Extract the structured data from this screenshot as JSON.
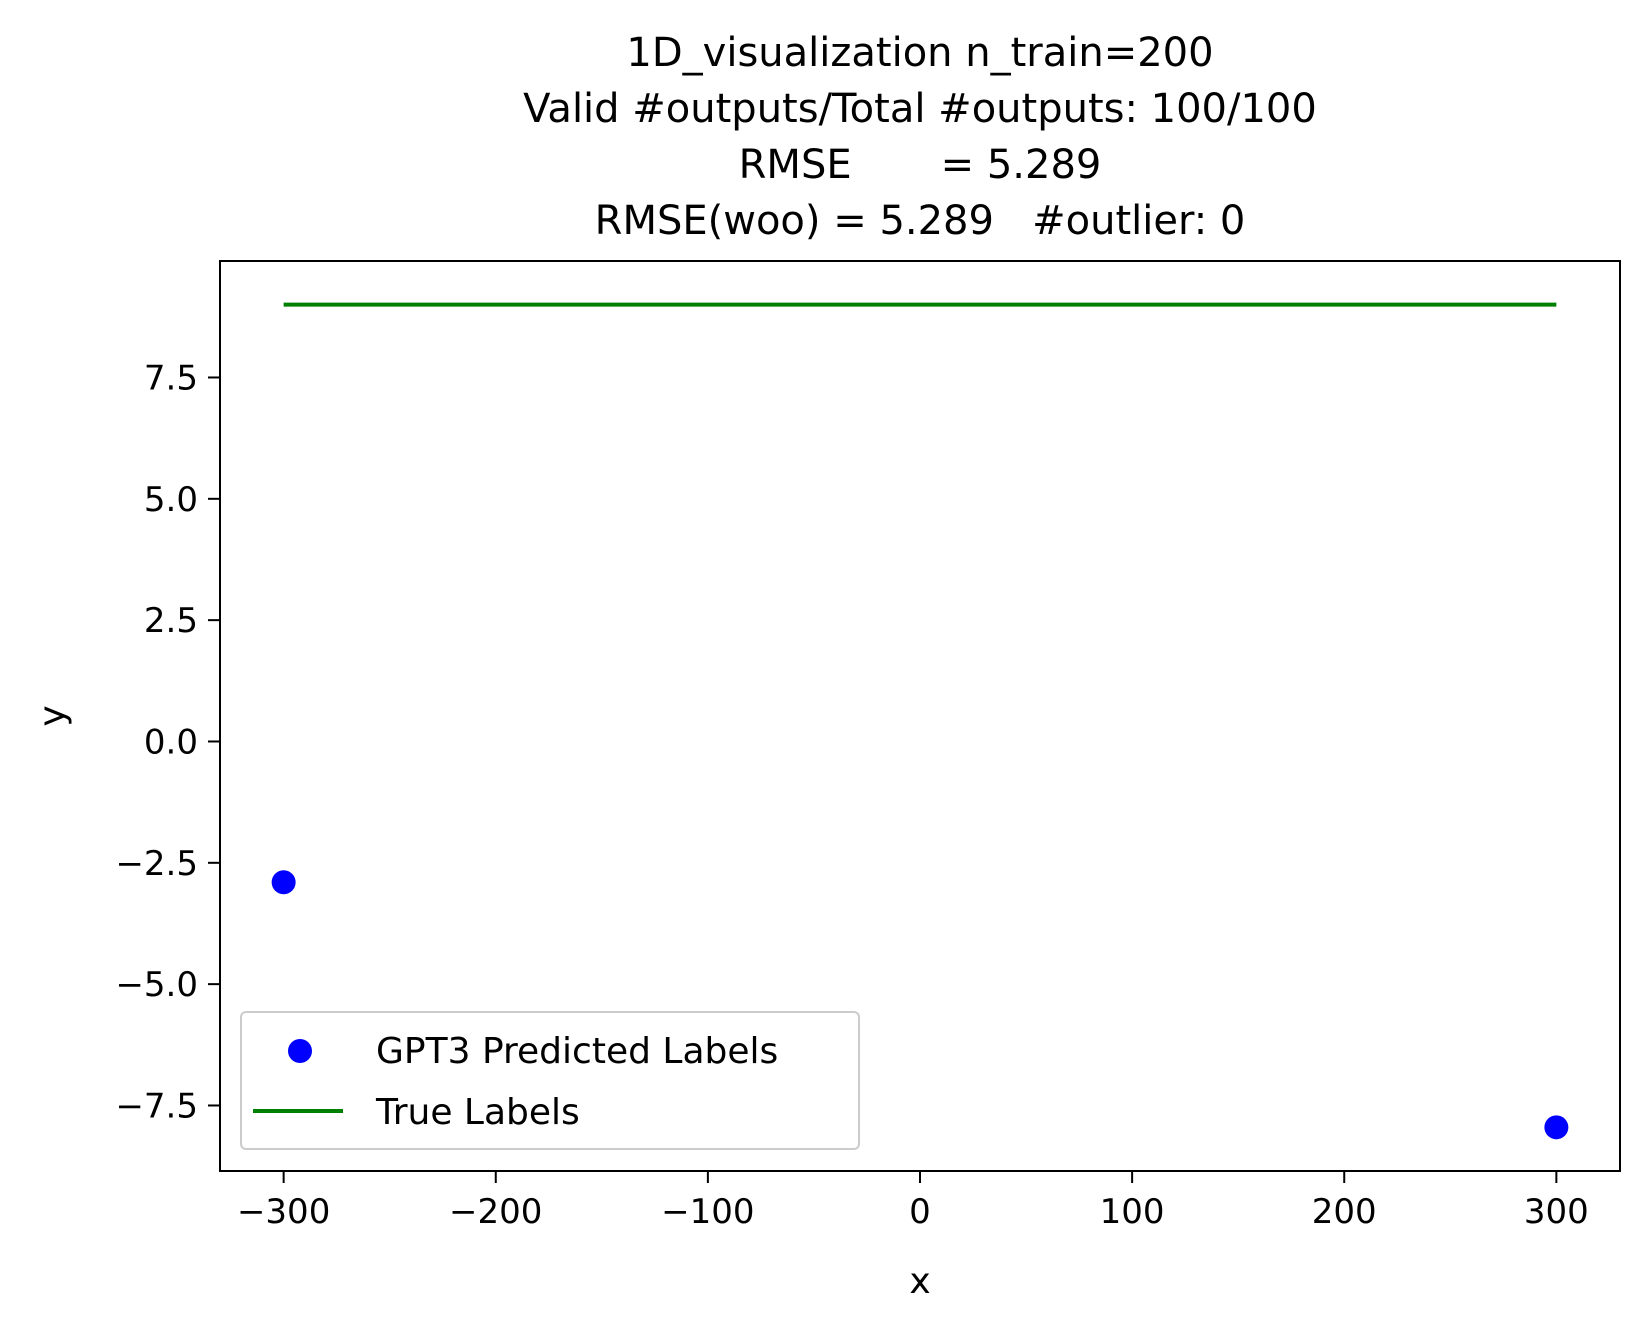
{
  "chart_data": {
    "type": "scatter",
    "title_lines": [
      "1D_visualization  n_train=200",
      "Valid #outputs/Total #outputs: 100/100",
      "RMSE       = 5.289",
      "RMSE(woo) = 5.289   #outlier: 0"
    ],
    "xlabel": "x",
    "ylabel": "y",
    "xlim": [
      -330,
      330
    ],
    "ylim": [
      -8.85,
      9.9
    ],
    "x_ticks": [
      -300,
      -200,
      -100,
      0,
      100,
      200,
      300
    ],
    "x_tick_labels": [
      "−300",
      "−200",
      "−100",
      "0",
      "100",
      "200",
      "300"
    ],
    "y_ticks": [
      7.5,
      5.0,
      2.5,
      0.0,
      -2.5,
      -5.0,
      -7.5
    ],
    "y_tick_labels": [
      "7.5",
      "5.0",
      "2.5",
      "0.0",
      "−2.5",
      "−5.0",
      "−7.5"
    ],
    "grid": false,
    "legend_position": "lower-left",
    "series": [
      {
        "name": "GPT3 Predicted Labels",
        "kind": "scatter",
        "color": "#0000ff",
        "x": [
          -300,
          300
        ],
        "y": [
          -2.9,
          -7.95
        ]
      },
      {
        "name": "True Labels",
        "kind": "line",
        "color": "#008000",
        "x": [
          -300,
          300
        ],
        "y": [
          9.0,
          9.0
        ]
      }
    ]
  }
}
